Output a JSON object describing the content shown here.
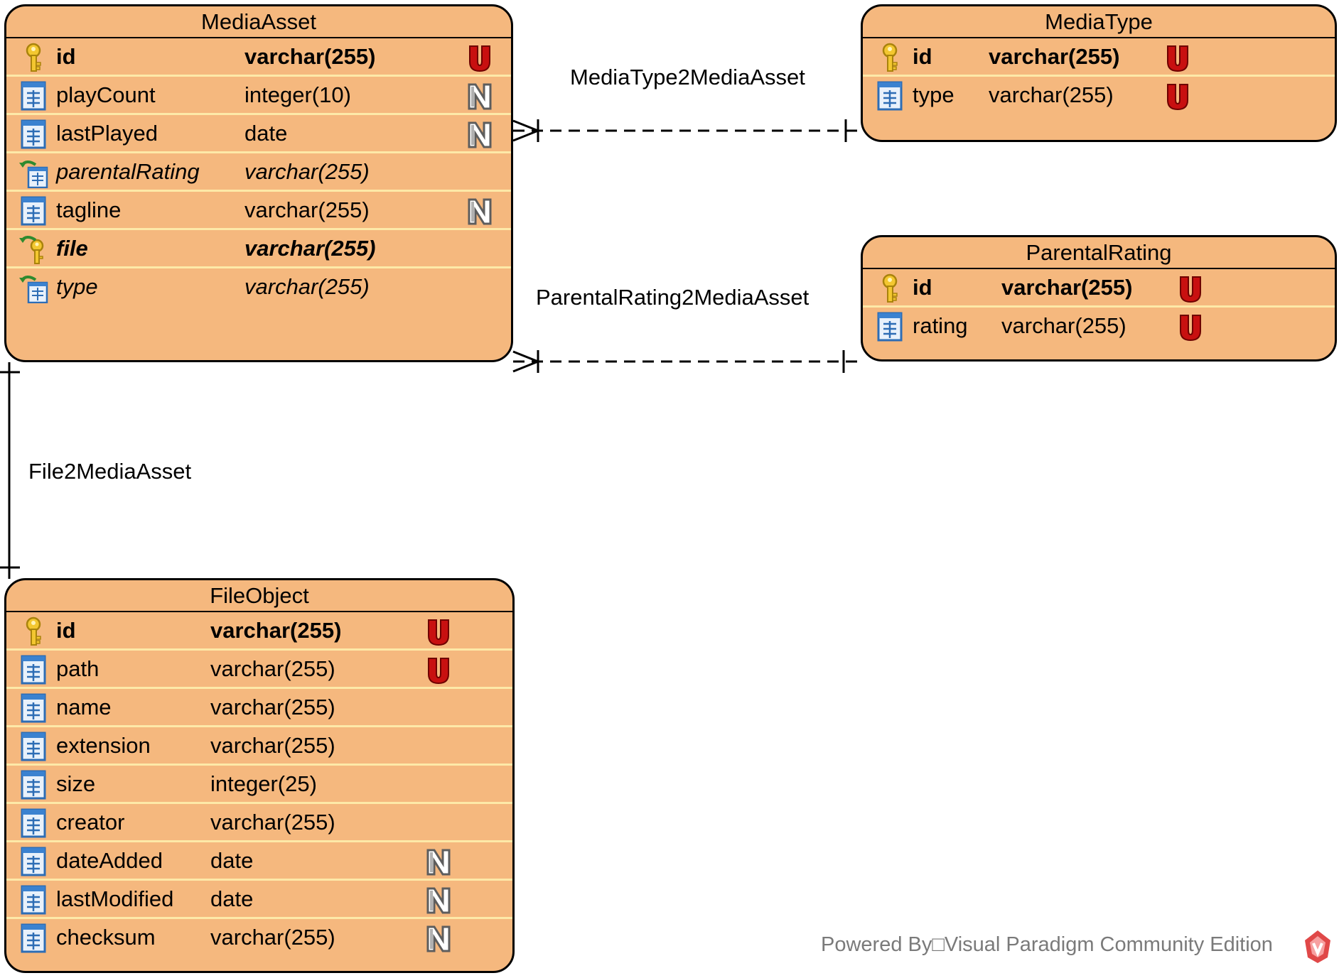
{
  "entities": {
    "media_asset": {
      "name": "MediaAsset",
      "columns": [
        {
          "name": "id",
          "type": "varchar(255)",
          "icon": "primary-key-icon",
          "style": "bold",
          "constraint": "U"
        },
        {
          "name": "playCount",
          "type": "integer(10)",
          "icon": "column-icon",
          "style": "normal",
          "constraint": "N"
        },
        {
          "name": "lastPlayed",
          "type": "date",
          "icon": "column-icon",
          "style": "normal",
          "constraint": "N"
        },
        {
          "name": "parentalRating",
          "type": "varchar(255)",
          "icon": "foreign-key-column-icon",
          "style": "italic",
          "constraint": ""
        },
        {
          "name": "tagline",
          "type": "varchar(255)",
          "icon": "column-icon",
          "style": "normal",
          "constraint": "N"
        },
        {
          "name": "file",
          "type": "varchar(255)",
          "icon": "foreign-primary-key-icon",
          "style": "bold-italic",
          "constraint": ""
        },
        {
          "name": "type",
          "type": "varchar(255)",
          "icon": "foreign-key-column-icon",
          "style": "italic",
          "constraint": ""
        }
      ]
    },
    "media_type": {
      "name": "MediaType",
      "columns": [
        {
          "name": "id",
          "type": "varchar(255)",
          "icon": "primary-key-icon",
          "style": "bold",
          "constraint": "U"
        },
        {
          "name": "type",
          "type": "varchar(255)",
          "icon": "column-icon",
          "style": "normal",
          "constraint": "U"
        }
      ]
    },
    "parental_rating": {
      "name": "ParentalRating",
      "columns": [
        {
          "name": "id",
          "type": "varchar(255)",
          "icon": "primary-key-icon",
          "style": "bold",
          "constraint": "U"
        },
        {
          "name": "rating",
          "type": "varchar(255)",
          "icon": "column-icon",
          "style": "normal",
          "constraint": "U"
        }
      ]
    },
    "file_object": {
      "name": "FileObject",
      "columns": [
        {
          "name": "id",
          "type": "varchar(255)",
          "icon": "primary-key-icon",
          "style": "bold",
          "constraint": "U"
        },
        {
          "name": "path",
          "type": "varchar(255)",
          "icon": "column-icon",
          "style": "normal",
          "constraint": "U"
        },
        {
          "name": "name",
          "type": "varchar(255)",
          "icon": "column-icon",
          "style": "normal",
          "constraint": ""
        },
        {
          "name": "extension",
          "type": "varchar(255)",
          "icon": "column-icon",
          "style": "normal",
          "constraint": ""
        },
        {
          "name": "size",
          "type": "integer(25)",
          "icon": "column-icon",
          "style": "normal",
          "constraint": ""
        },
        {
          "name": "creator",
          "type": "varchar(255)",
          "icon": "column-icon",
          "style": "normal",
          "constraint": ""
        },
        {
          "name": "dateAdded",
          "type": "date",
          "icon": "column-icon",
          "style": "normal",
          "constraint": "N"
        },
        {
          "name": "lastModified",
          "type": "date",
          "icon": "column-icon",
          "style": "normal",
          "constraint": "N"
        },
        {
          "name": "checksum",
          "type": "varchar(255)",
          "icon": "column-icon",
          "style": "normal",
          "constraint": "N"
        }
      ]
    }
  },
  "relationships": {
    "media_type_to_asset": {
      "label": "MediaType2MediaAsset",
      "from": "MediaType",
      "to": "MediaAsset",
      "from_end": "one",
      "to_end": "many",
      "line": "dashed"
    },
    "rating_to_asset": {
      "label": "ParentalRating2MediaAsset",
      "from": "ParentalRating",
      "to": "MediaAsset",
      "from_end": "one",
      "to_end": "many",
      "line": "dashed"
    },
    "file_to_asset": {
      "label": "File2MediaAsset",
      "from": "FileObject",
      "to": "MediaAsset",
      "from_end": "one",
      "to_end": "one",
      "line": "solid"
    }
  },
  "footer": {
    "text": "Powered By□Visual Paradigm Community Edition",
    "logo": "visual-paradigm-logo-icon"
  },
  "colors": {
    "entity_fill": "#f5b87e",
    "row_divider": "#fde9a8",
    "unique_badge": "#c81010",
    "nullable_badge": "#8a8a8a",
    "footer_text": "#7a7a7a"
  }
}
